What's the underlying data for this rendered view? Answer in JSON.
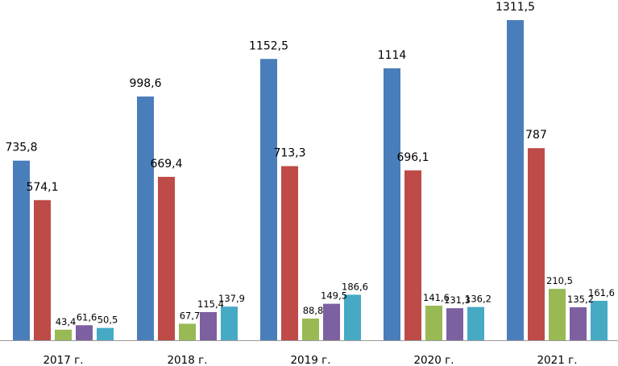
{
  "chart_data": {
    "type": "bar",
    "title": "",
    "xlabel": "",
    "ylabel": "",
    "categories": [
      "2017 г.",
      "2018 г.",
      "2019 г.",
      "2020 г.",
      "2021 г."
    ],
    "series": [
      {
        "values": [
          735.8,
          998.6,
          1152.5,
          1114,
          1311.5
        ],
        "labels": [
          "735,8",
          "998,6",
          "1152,5",
          "1114",
          "1311,5"
        ],
        "color": "#4a7ebb"
      },
      {
        "values": [
          574.1,
          669.4,
          713.3,
          696.1,
          787
        ],
        "labels": [
          "574,1",
          "669,4",
          "713,3",
          "696,1",
          "787"
        ],
        "color": "#be4b48"
      },
      {
        "values": [
          43.4,
          67.7,
          88.8,
          141.6,
          210.5
        ],
        "labels": [
          "43,4",
          "67,7",
          "88,8",
          "141,6",
          "210,5"
        ],
        "color": "#98b954"
      },
      {
        "values": [
          61.6,
          115.4,
          149.5,
          131.3,
          135.2
        ],
        "labels": [
          "61,6",
          "115,4",
          "149,5",
          "131,3",
          "135,2"
        ],
        "color": "#7d60a0"
      },
      {
        "values": [
          50.5,
          137.9,
          186.6,
          136.2,
          161.6
        ],
        "labels": [
          "50,5",
          "137,9",
          "186,6",
          "136,2",
          "161,6"
        ],
        "color": "#46aac5"
      }
    ],
    "ylim": [
      0,
      1380
    ],
    "grid": false,
    "legend": "none"
  }
}
